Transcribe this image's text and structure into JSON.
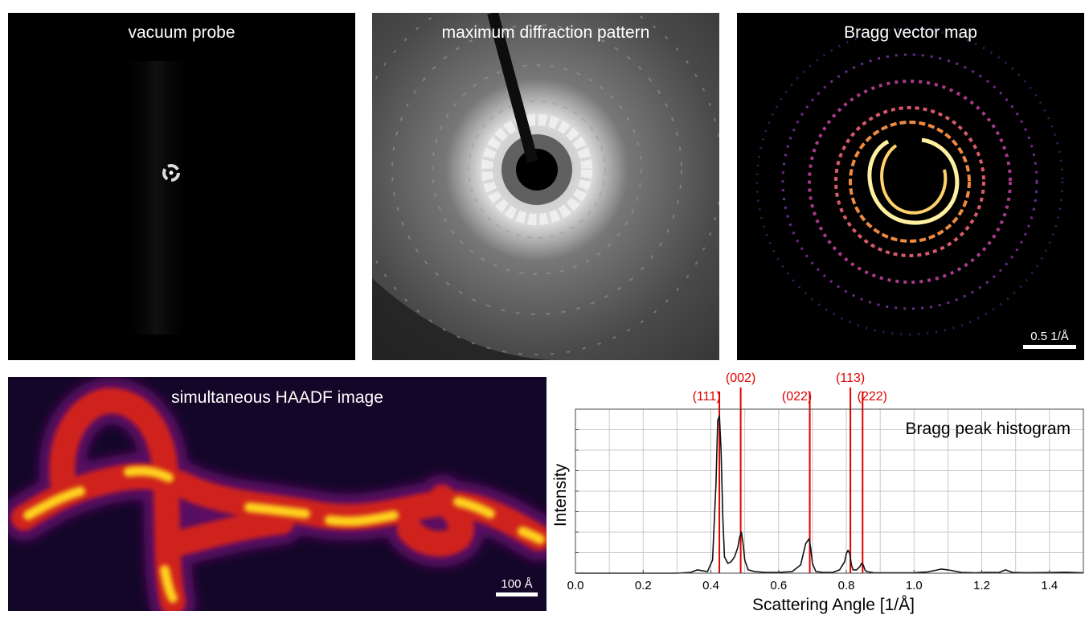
{
  "panels": {
    "vacuum_probe": {
      "title": "vacuum probe"
    },
    "max_diffraction": {
      "title": "maximum diffraction pattern"
    },
    "bragg_map": {
      "title": "Bragg vector map",
      "scalebar": "0.5 1/Å"
    },
    "haadf": {
      "title": "simultaneous HAADF image",
      "scalebar": "100 Å"
    }
  },
  "colors": {
    "peak_line": "#e00000",
    "curve": "#111111",
    "grid": "#c8c8c8"
  },
  "chart_data": {
    "type": "line",
    "title": "Bragg peak histogram",
    "xlabel": "Scattering Angle [1/Å]",
    "ylabel": "Intensity",
    "xlim": [
      0.0,
      1.5
    ],
    "ylim": [
      0,
      1.0
    ],
    "xticks": [
      "0.0",
      "0.2",
      "0.4",
      "0.6",
      "0.8",
      "1.0",
      "1.2",
      "1.4"
    ],
    "grid": true,
    "series": [
      {
        "x": [
          0.0,
          0.3,
          0.34,
          0.36,
          0.39,
          0.405,
          0.415,
          0.42,
          0.425,
          0.43,
          0.435,
          0.44,
          0.45,
          0.46,
          0.47,
          0.48,
          0.485,
          0.49,
          0.495,
          0.5,
          0.51,
          0.53,
          0.56,
          0.6,
          0.64,
          0.665,
          0.68,
          0.69,
          0.695,
          0.7,
          0.71,
          0.73,
          0.76,
          0.78,
          0.795,
          0.8,
          0.805,
          0.81,
          0.815,
          0.82,
          0.83,
          0.84,
          0.845,
          0.85,
          0.855,
          0.86,
          0.88,
          0.92,
          1.0,
          1.04,
          1.07,
          1.08,
          1.1,
          1.14,
          1.18,
          1.2,
          1.22,
          1.25,
          1.27,
          1.29,
          1.33,
          1.4,
          1.45,
          1.5
        ],
        "y": [
          0.0,
          0.0,
          0.005,
          0.02,
          0.01,
          0.08,
          0.55,
          0.93,
          0.96,
          0.75,
          0.35,
          0.1,
          0.06,
          0.07,
          0.1,
          0.16,
          0.22,
          0.25,
          0.18,
          0.08,
          0.02,
          0.01,
          0.005,
          0.005,
          0.01,
          0.05,
          0.18,
          0.21,
          0.15,
          0.06,
          0.01,
          0.005,
          0.005,
          0.02,
          0.07,
          0.12,
          0.14,
          0.12,
          0.05,
          0.02,
          0.02,
          0.04,
          0.06,
          0.05,
          0.02,
          0.01,
          0.003,
          0.002,
          0.003,
          0.008,
          0.02,
          0.025,
          0.02,
          0.005,
          0.002,
          0.004,
          0.005,
          0.004,
          0.02,
          0.005,
          0.003,
          0.004,
          0.006,
          0.002
        ]
      }
    ],
    "peaks": [
      {
        "label": "(111)",
        "x": 0.425
      },
      {
        "label": "(002)",
        "x": 0.488
      },
      {
        "label": "(022)",
        "x": 0.692
      },
      {
        "label": "(113)",
        "x": 0.812
      },
      {
        "label": "(222)",
        "x": 0.848
      }
    ]
  }
}
